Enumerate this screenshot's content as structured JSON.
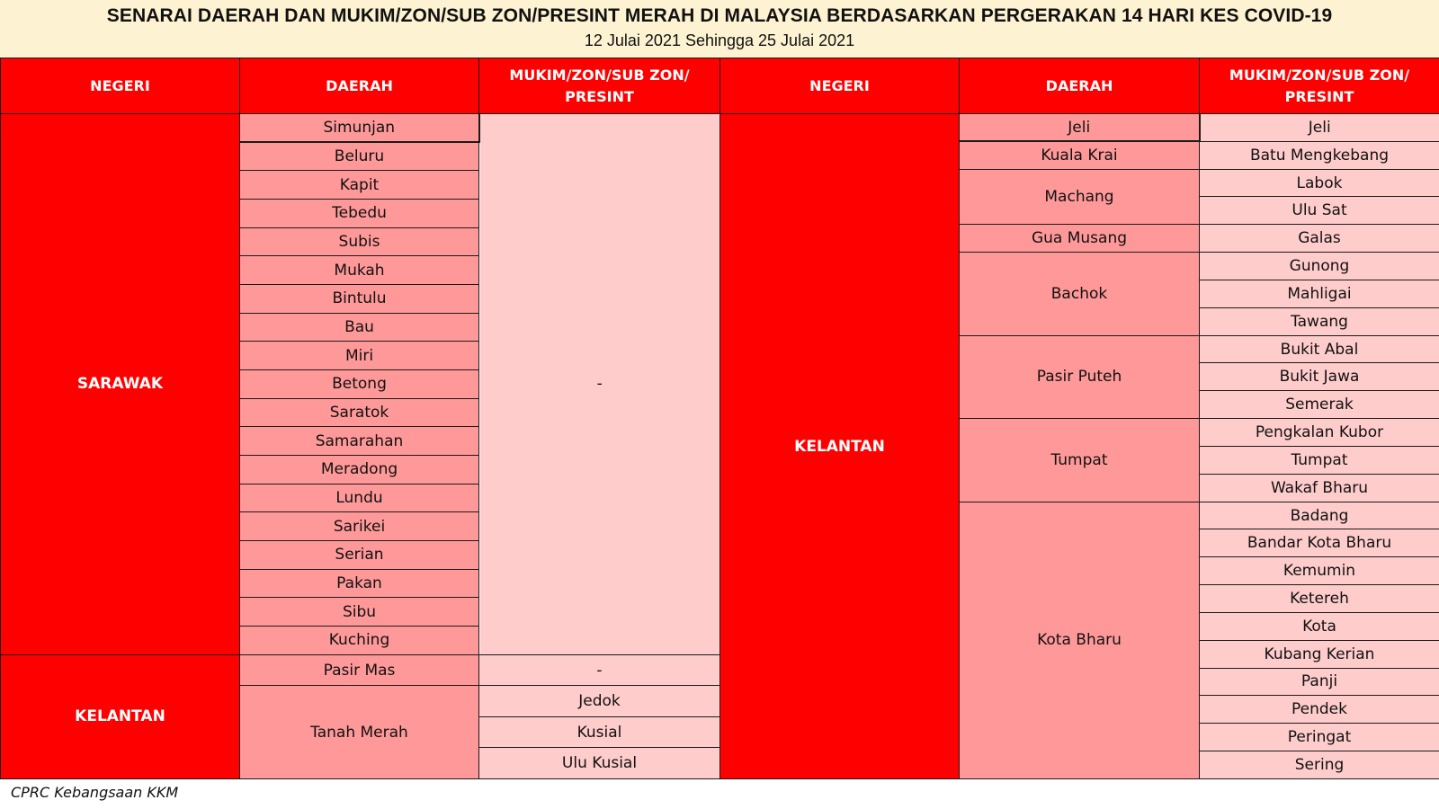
{
  "title": "SENARAI DAERAH DAN MUKIM/ZON/SUB ZON/PRESINT MERAH DI MALAYSIA BERDASARKAN PERGERAKAN 14 HARI KES COVID-19",
  "subtitle": "12 Julai 2021 Sehingga 25 Julai 2021",
  "headers": {
    "negeri": "NEGERI",
    "daerah": "DAERAH",
    "mukim": "MUKIM/ZON/SUB ZON/ PRESINT"
  },
  "left_table": {
    "sarawak": {
      "negeri": "SARAWAK",
      "daerah": [
        "Simunjan",
        "Beluru",
        "Kapit",
        "Tebedu",
        "Subis",
        "Mukah",
        "Bintulu",
        "Bau",
        "Miri",
        "Betong",
        "Saratok",
        "Samarahan",
        "Meradong",
        "Lundu",
        "Sarikei",
        "Serian",
        "Pakan",
        "Sibu",
        "Kuching"
      ],
      "mukim": "-"
    },
    "kelantan": {
      "negeri": "KELANTAN",
      "pasir_mas": {
        "daerah": "Pasir Mas",
        "mukim": "-"
      },
      "tanah_merah": {
        "daerah": "Tanah Merah",
        "mukim": [
          "Jedok",
          "Kusial",
          "Ulu Kusial"
        ]
      }
    }
  },
  "right_table": {
    "negeri": "KELANTAN",
    "groups": [
      {
        "daerah": "Jeli",
        "mukim": [
          "Jeli"
        ]
      },
      {
        "daerah": "Kuala Krai",
        "mukim": [
          "Batu Mengkebang"
        ]
      },
      {
        "daerah": "Machang",
        "mukim": [
          "Labok",
          "Ulu Sat"
        ]
      },
      {
        "daerah": "Gua Musang",
        "mukim": [
          "Galas"
        ]
      },
      {
        "daerah": "Bachok",
        "mukim": [
          "Gunong",
          "Mahligai",
          "Tawang"
        ]
      },
      {
        "daerah": "Pasir Puteh",
        "mukim": [
          "Bukit Abal",
          "Bukit Jawa",
          "Semerak"
        ]
      },
      {
        "daerah": "Tumpat",
        "mukim": [
          "Pengkalan Kubor",
          "Tumpat",
          "Wakaf Bharu"
        ]
      },
      {
        "daerah": "Kota Bharu",
        "mukim": [
          "Badang",
          "Bandar Kota Bharu",
          "Kemumin",
          "Ketereh",
          "Kota",
          "Kubang Kerian",
          "Panji",
          "Pendek",
          "Peringat",
          "Sering"
        ]
      }
    ]
  },
  "footer": "CPRC Kebangsaan KKM"
}
